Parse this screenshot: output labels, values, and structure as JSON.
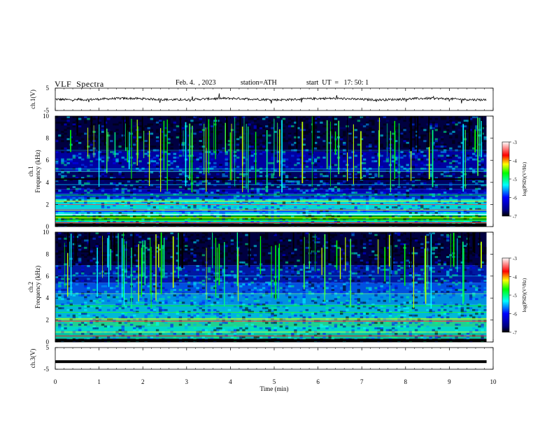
{
  "header": {
    "title": "VLF  Spectra",
    "date": "Feb. 4.  , 2023",
    "station": "station=ATH",
    "start": "start  UT  =   17: 50: 1"
  },
  "chart_data": [
    {
      "type": "line",
      "name": "ch1-waveform",
      "ylabel": "ch.1(V)",
      "xlim": [
        0,
        10
      ],
      "ylim": [
        -5,
        5
      ],
      "yticks": [
        {
          "value": 5,
          "label": "5"
        },
        {
          "value": -5,
          "label": "-5"
        }
      ],
      "series": [
        {
          "color": "#000000",
          "mean": 0.1,
          "noise": 0.5,
          "end_min": 9.85
        }
      ]
    },
    {
      "type": "heatmap",
      "name": "ch1-spectrogram",
      "ylabel": "ch.1\nFrequency  (kHz)",
      "xlim": [
        0,
        9.85
      ],
      "ylim": [
        0,
        10
      ],
      "yticks": [
        0,
        2,
        4,
        6,
        8,
        10
      ],
      "colorbar": {
        "label": "log(PSD)(V²/Hz)",
        "range": [
          -7,
          -3
        ],
        "ticks": [
          -3,
          -4,
          -5,
          -6,
          -7
        ]
      }
    },
    {
      "type": "heatmap",
      "name": "ch2-spectrogram",
      "ylabel": "ch.2\nFrequency  (kHz)",
      "xlim": [
        0,
        9.85
      ],
      "ylim": [
        0,
        10
      ],
      "yticks": [
        0,
        2,
        4,
        6,
        8,
        10
      ],
      "colorbar": {
        "label": "log(PSD)(V²/Hz)",
        "range": [
          -7,
          -3
        ],
        "ticks": [
          -3,
          -4,
          -5,
          -6,
          -7
        ]
      }
    },
    {
      "type": "line",
      "name": "ch3-waveform",
      "ylabel": "ch.3(V)",
      "xlabel": "Time  (min)",
      "xlim": [
        0,
        10
      ],
      "ylim": [
        -5,
        5
      ],
      "xticks": [
        0,
        1,
        2,
        3,
        4,
        5,
        6,
        7,
        8,
        9,
        10
      ],
      "yticks": [
        {
          "value": 5,
          "label": "5"
        },
        {
          "value": -5,
          "label": "-5"
        }
      ],
      "series": [
        {
          "color": "#000000",
          "mean": -1.5,
          "noise": 0.2,
          "end_min": 9.85
        }
      ]
    }
  ]
}
